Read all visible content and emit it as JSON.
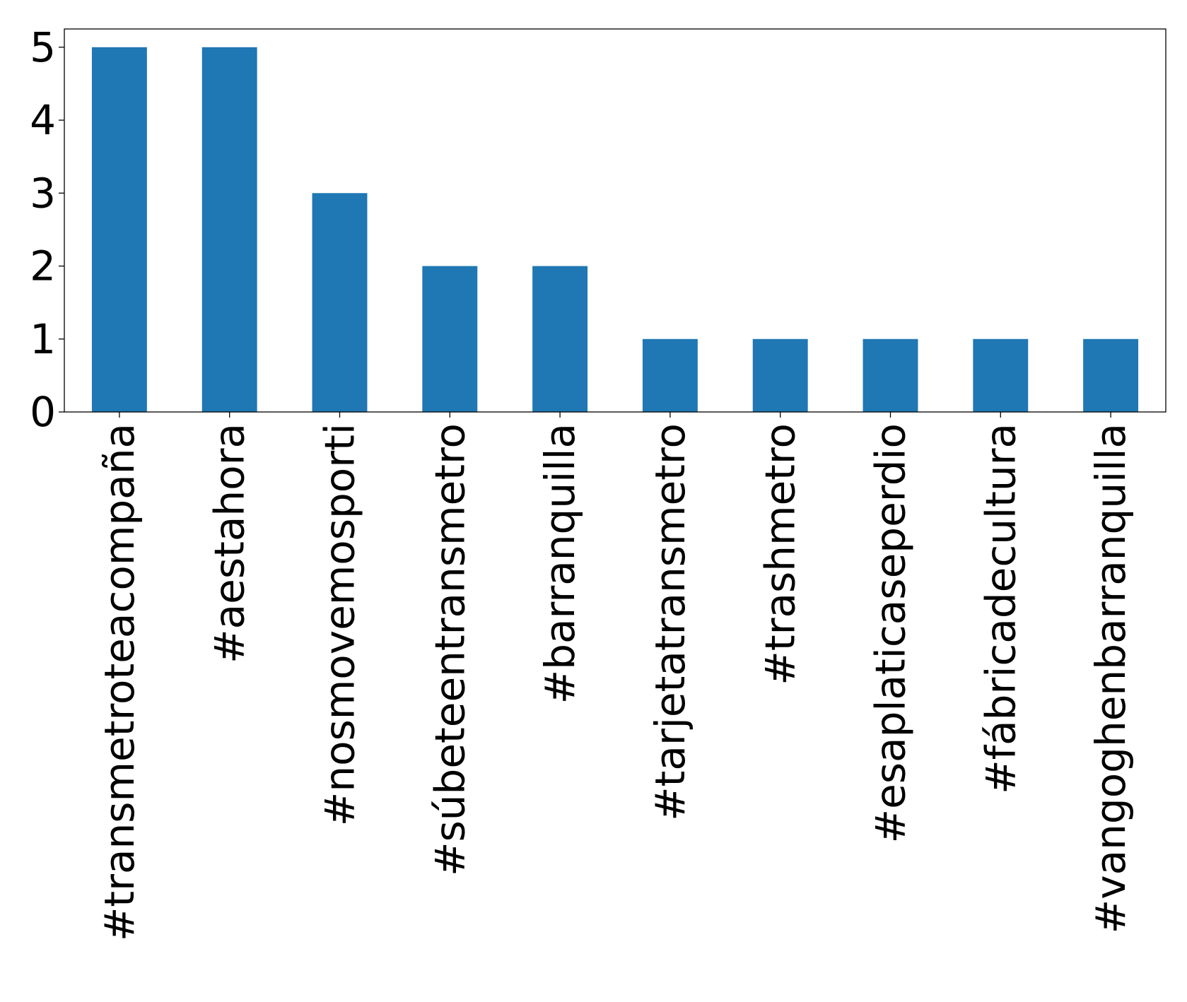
{
  "chart_data": {
    "type": "bar",
    "title": "",
    "xlabel": "",
    "ylabel": "",
    "categories": [
      "#transmetroteacompaña",
      "#aestahora",
      "#nosmovemosporti",
      "#súbeteentransmetro",
      "#barranquilla",
      "#tarjetatransmetro",
      "#trashmetro",
      "#esaplaticaseperdio",
      "#fábricadecultura",
      "#vangoghenbarranquilla"
    ],
    "values": [
      5,
      5,
      3,
      2,
      2,
      1,
      1,
      1,
      1,
      1
    ],
    "ylim": [
      0,
      5.25
    ],
    "yticks": [
      0,
      1,
      2,
      3,
      4,
      5
    ],
    "grid": false,
    "legend": "none",
    "bar_color": "#1f77b4",
    "axis_color": "#000000"
  }
}
